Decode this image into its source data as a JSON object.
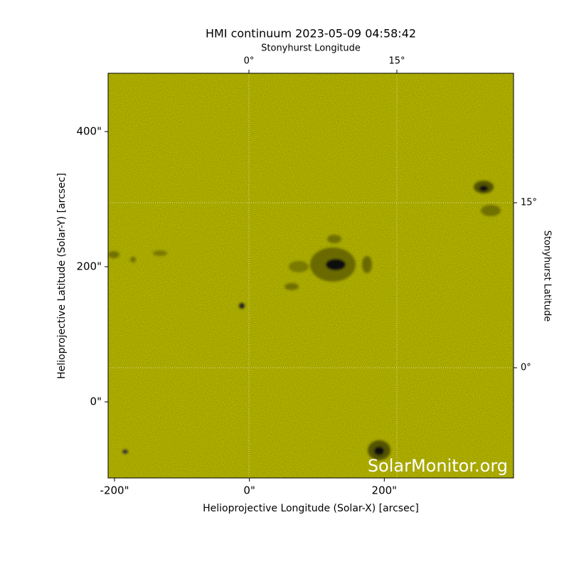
{
  "chart_data": {
    "type": "image",
    "title": "HMI continuum 2023-05-09 04:58:42",
    "xlabel": "Helioprojective Longitude (Solar-X) [arcsec]",
    "ylabel": "Helioprojective Latitude (Solar-Y) [arcsec]",
    "x2label": "Stonyhurst Longitude",
    "y2label": "Stonyhurst Latitude",
    "watermark": "SolarMonitor.org",
    "color": "#cccc00",
    "xlim": [
      -209.5,
      391.6
    ],
    "ylim": [
      -112.6,
      486.3
    ],
    "xticks": [
      {
        "value": -200,
        "label": "-200\""
      },
      {
        "value": 0,
        "label": "0\""
      },
      {
        "value": 200,
        "label": "200\""
      }
    ],
    "yticks": [
      {
        "value": 0,
        "label": "0\""
      },
      {
        "value": 200,
        "label": "200\""
      },
      {
        "value": 400,
        "label": "400\""
      }
    ],
    "x2lim": [
      -14.28,
      26.83
    ],
    "y2lim": [
      -10.02,
      26.77
    ],
    "x2ticks": [
      {
        "value": 0,
        "label": "0°"
      },
      {
        "value": 15,
        "label": "15°"
      }
    ],
    "y2ticks": [
      {
        "value": 0,
        "label": "0°"
      },
      {
        "value": 15,
        "label": "15°"
      }
    ],
    "grid": true
  }
}
